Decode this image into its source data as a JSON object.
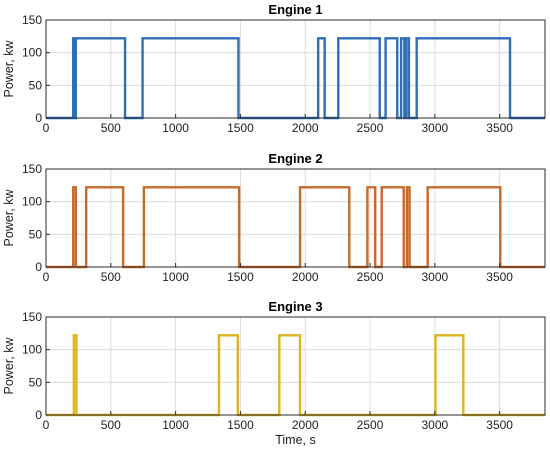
{
  "chart_data": [
    {
      "type": "line",
      "title": "Engine 1",
      "ylabel": "Power, kw",
      "xlabel": "",
      "xlim": [
        0,
        3850
      ],
      "ylim": [
        0,
        150
      ],
      "xticks": [
        0,
        500,
        1000,
        1500,
        2000,
        2500,
        3000,
        3500
      ],
      "yticks": [
        0,
        50,
        100,
        150
      ],
      "grid": true,
      "color": "#2f6eba",
      "series": [
        {
          "x": [
            0,
            210,
            210,
            220,
            220,
            230,
            230,
            610,
            610,
            745,
            745,
            1485,
            1485,
            2000,
            2000,
            2100,
            2100,
            2150,
            2150,
            2255,
            2255,
            2575,
            2575,
            2620,
            2620,
            2710,
            2710,
            2740,
            2740,
            2765,
            2765,
            2780,
            2780,
            2800,
            2800,
            2860,
            2860,
            3580,
            3580,
            3850
          ],
          "y": [
            0,
            0,
            122,
            122,
            0,
            0,
            122,
            122,
            0,
            0,
            122,
            122,
            0,
            0,
            0,
            0,
            122,
            122,
            0,
            0,
            122,
            122,
            0,
            0,
            122,
            122,
            0,
            0,
            122,
            122,
            0,
            0,
            122,
            122,
            0,
            0,
            122,
            122,
            0,
            0
          ]
        }
      ]
    },
    {
      "type": "line",
      "title": "Engine 2",
      "ylabel": "Power, kw",
      "xlabel": "",
      "xlim": [
        0,
        3850
      ],
      "ylim": [
        0,
        150
      ],
      "xticks": [
        0,
        500,
        1000,
        1500,
        2000,
        2500,
        3000,
        3500
      ],
      "yticks": [
        0,
        50,
        100,
        150
      ],
      "grid": true,
      "color": "#c86a2a",
      "series": [
        {
          "x": [
            0,
            210,
            210,
            230,
            230,
            310,
            310,
            595,
            595,
            755,
            755,
            1490,
            1490,
            1960,
            1960,
            2340,
            2340,
            2480,
            2480,
            2540,
            2540,
            2570,
            2570,
            2590,
            2590,
            2760,
            2760,
            2785,
            2785,
            2805,
            2805,
            2945,
            2945,
            3505,
            3505,
            3850
          ],
          "y": [
            0,
            0,
            122,
            122,
            0,
            0,
            122,
            122,
            0,
            0,
            122,
            122,
            0,
            0,
            122,
            122,
            0,
            0,
            122,
            122,
            0,
            0,
            0,
            0,
            122,
            122,
            0,
            0,
            122,
            122,
            0,
            0,
            122,
            122,
            0,
            0
          ]
        }
      ]
    },
    {
      "type": "line",
      "title": "Engine 3",
      "ylabel": "Power, kw",
      "xlabel": "Time, s",
      "xlim": [
        0,
        3850
      ],
      "ylim": [
        0,
        150
      ],
      "xticks": [
        0,
        500,
        1000,
        1500,
        2000,
        2500,
        3000,
        3500
      ],
      "yticks": [
        0,
        50,
        100,
        150
      ],
      "grid": true,
      "color": "#ddb41f",
      "series": [
        {
          "x": [
            0,
            215,
            215,
            235,
            235,
            1335,
            1335,
            1480,
            1480,
            1800,
            1800,
            1960,
            1960,
            3005,
            3005,
            3220,
            3220,
            3850
          ],
          "y": [
            0,
            0,
            122,
            122,
            0,
            0,
            122,
            122,
            0,
            0,
            122,
            122,
            0,
            0,
            122,
            122,
            0,
            0
          ]
        }
      ]
    }
  ]
}
